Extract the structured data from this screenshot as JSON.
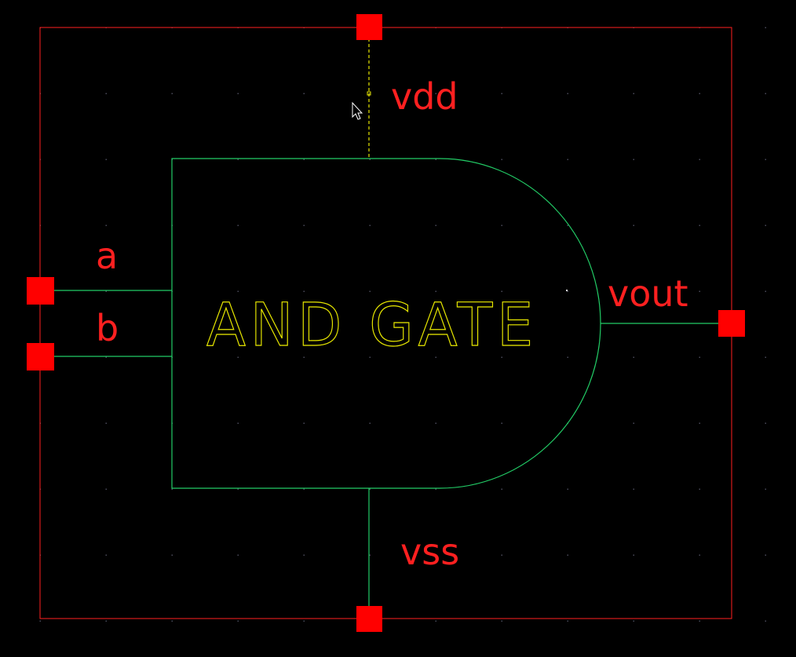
{
  "colors": {
    "background": "#000000",
    "grid_dot": "#4a4a5a",
    "boundary": "#ff2020",
    "pin": "#ff0000",
    "wire": "#22cc66",
    "gate_body": "#22cc66",
    "title_text": "#e6e600",
    "pin_label": "#ff2020",
    "selected_wire": "#e6e600",
    "cursor": "#ffffff"
  },
  "symbol": {
    "title": "AND GATE"
  },
  "pins": {
    "vdd": {
      "label": "vdd"
    },
    "vss": {
      "label": "vss"
    },
    "a": {
      "label": "a"
    },
    "b": {
      "label": "b"
    },
    "vout": {
      "label": "vout"
    }
  },
  "icons": {
    "cursor": "arrow-pointer-icon"
  }
}
